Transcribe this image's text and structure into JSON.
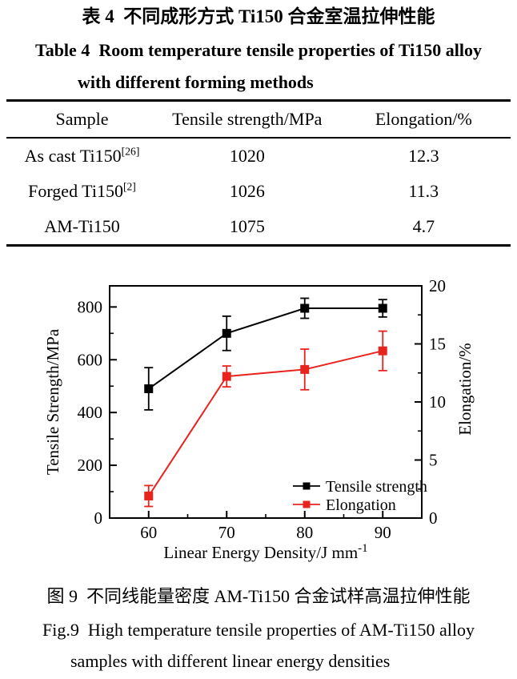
{
  "table_block": {
    "title_zh": "表 4  不同成形方式 Ti150 合金室温拉伸性能",
    "title_en_1": "Table 4  Room temperature tensile properties of Ti150 alloy",
    "title_en_2": "with different forming methods",
    "header": {
      "sample": "Sample",
      "tensile": "Tensile strength/MPa",
      "elongation": "Elongation/%"
    },
    "rows": [
      {
        "sample": "As cast Ti150",
        "ref": "[26]",
        "tensile": "1020",
        "elongation": "12.3"
      },
      {
        "sample": "Forged Ti150",
        "ref": "[2]",
        "tensile": "1026",
        "elongation": "11.3"
      },
      {
        "sample": "AM-Ti150",
        "ref": "",
        "tensile": "1075",
        "elongation": "4.7"
      }
    ]
  },
  "chart_data": {
    "type": "line",
    "x": [
      60,
      70,
      80,
      90
    ],
    "xticks": [
      60,
      70,
      80,
      90
    ],
    "xlim": [
      55,
      95
    ],
    "xlabel_main": "Linear Energy Density/J mm",
    "xlabel_sup": "-1",
    "ylabel_left": "Tensile Strength/MPa",
    "ylim_left": [
      0,
      880
    ],
    "yticks_left": [
      0,
      200,
      400,
      600,
      800
    ],
    "ylabel_right": "Elongation/%",
    "ylim_right": [
      0,
      20
    ],
    "yticks_right": [
      0,
      5,
      10,
      15,
      20
    ],
    "grid": false,
    "legend_position": "lower right",
    "series": [
      {
        "name": "Tensile strength",
        "axis": "left",
        "color": "#000000",
        "values": [
          490,
          700,
          795,
          795
        ],
        "errors": [
          80,
          65,
          38,
          33
        ]
      },
      {
        "name": "Elongation",
        "axis": "right",
        "color": "#e8241f",
        "values": [
          1.9,
          12.2,
          12.8,
          14.4
        ],
        "errors": [
          0.9,
          0.9,
          1.75,
          1.7
        ]
      }
    ]
  },
  "figure_caption": {
    "zh": "图 9  不同线能量密度 AM-Ti150 合金试样高温拉伸性能",
    "en_1": "Fig.9  High temperature tensile properties of AM-Ti150 alloy",
    "en_2": "samples with different linear energy densities"
  }
}
